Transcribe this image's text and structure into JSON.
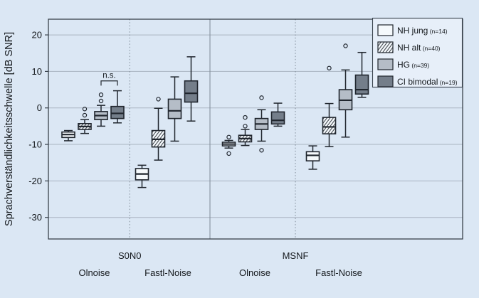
{
  "figure": {
    "background": "#dbe7f4",
    "frame_color": "#39424c",
    "grid_color": "#a9b4c1",
    "divider_color": "#7e8a96",
    "box_stroke": "#20262e",
    "ylabel": "Sprachverständlichkeitsschwelle [dB SNR]"
  },
  "legend": {
    "position": "top-right",
    "items": [
      {
        "label": "NH jung",
        "n_label": "(n=14)",
        "swatch": "#f5f9fc"
      },
      {
        "label": "NH alt",
        "n_label": "(n=40)",
        "swatch": "hatch"
      },
      {
        "label": "HG",
        "n_label": "(n=39)",
        "swatch": "#b5bdc7"
      },
      {
        "label": "CI bimodal",
        "n_label": "(n=19)",
        "swatch": "#747e8a"
      }
    ]
  },
  "chart_data": {
    "type": "boxplot",
    "title": "",
    "xlabel": "",
    "ylabel": "Sprachverständlichkeitsschwelle [dB SNR]",
    "ylim": [
      -35.9,
      24.3
    ],
    "yticks": [
      20,
      10,
      0,
      -10,
      -20,
      -30
    ],
    "grid": true,
    "group_labels": [
      "S0N0",
      "MSNF"
    ],
    "series": [
      {
        "name": "NH jung",
        "n_label": "(n=14)",
        "fill": "#f5f9fc"
      },
      {
        "name": "NH alt",
        "n_label": "(n=40)",
        "fill": "hatch"
      },
      {
        "name": "HG",
        "n_label": "(n=39)",
        "fill": "#b5bdc7"
      },
      {
        "name": "CI bimodal",
        "n_label": "(n=19)",
        "fill": "#747e8a"
      }
    ],
    "clusters": [
      {
        "group": "S0N0",
        "condition": "Olnoise",
        "boxes": [
          {
            "series": "NH jung",
            "whislo": -9.0,
            "q1": -8.1,
            "med": -7.3,
            "q3": -6.6,
            "whishi": -6.2,
            "outliers": []
          },
          {
            "series": "NH alt",
            "whislo": -7.0,
            "q1": -5.9,
            "med": -5.1,
            "q3": -4.3,
            "whishi": -3.2,
            "outliers": [
              -2.0,
              -0.3
            ]
          },
          {
            "series": "HG",
            "whislo": -5.0,
            "q1": -3.2,
            "med": -2.1,
            "q3": -1.0,
            "whishi": 0.7,
            "outliers": [
              1.9,
              3.6
            ]
          },
          {
            "series": "CI bimodal",
            "whislo": -4.1,
            "q1": -2.9,
            "med": -1.5,
            "q3": 0.4,
            "whishi": 4.7,
            "outliers": []
          }
        ]
      },
      {
        "group": "S0N0",
        "condition": "Fastl-Noise",
        "boxes": [
          {
            "series": "NH jung",
            "whislo": -21.8,
            "q1": -19.7,
            "med": -18.1,
            "q3": -16.6,
            "whishi": -15.7,
            "outliers": []
          },
          {
            "series": "NH alt",
            "whislo": -14.3,
            "q1": -10.7,
            "med": -8.6,
            "q3": -6.2,
            "whishi": -0.1,
            "outliers": [
              2.4
            ]
          },
          {
            "series": "HG",
            "whislo": -9.1,
            "q1": -2.9,
            "med": -0.8,
            "q3": 2.4,
            "whishi": 8.5,
            "outliers": []
          },
          {
            "series": "CI bimodal",
            "whislo": -3.6,
            "q1": 1.6,
            "med": 4.0,
            "q3": 7.4,
            "whishi": 14.0,
            "outliers": []
          }
        ]
      },
      {
        "group": "MSNF",
        "condition": "Olnoise",
        "boxes": [
          {
            "series": "NH jung",
            "whislo": -11.0,
            "q1": -10.4,
            "med": -9.9,
            "q3": -9.4,
            "whishi": -8.9,
            "outliers": [
              -12.5,
              -8.0
            ]
          },
          {
            "series": "NH alt",
            "whislo": -10.3,
            "q1": -9.3,
            "med": -8.4,
            "q3": -7.5,
            "whishi": -5.9,
            "outliers": [
              -5.0,
              -2.6
            ]
          },
          {
            "series": "HG",
            "whislo": -9.1,
            "q1": -5.9,
            "med": -4.4,
            "q3": -2.9,
            "whishi": -0.5,
            "outliers": [
              -11.6,
              2.8
            ]
          },
          {
            "series": "CI bimodal",
            "whislo": -5.0,
            "q1": -4.4,
            "med": -3.4,
            "q3": -1.1,
            "whishi": 1.3,
            "outliers": []
          }
        ]
      },
      {
        "group": "MSNF",
        "condition": "Fastl-Noise",
        "boxes": [
          {
            "series": "NH jung",
            "whislo": -16.8,
            "q1": -14.5,
            "med": -13.0,
            "q3": -12.0,
            "whishi": -10.4,
            "outliers": []
          },
          {
            "series": "NH alt",
            "whislo": -10.6,
            "q1": -7.1,
            "med": -5.2,
            "q3": -2.6,
            "whishi": 1.2,
            "outliers": [
              10.9
            ]
          },
          {
            "series": "HG",
            "whislo": -8.0,
            "q1": -0.5,
            "med": 2.1,
            "q3": 5.0,
            "whishi": 10.4,
            "outliers": [
              17.0
            ]
          },
          {
            "series": "CI bimodal",
            "whislo": 2.9,
            "q1": 3.8,
            "med": 5.0,
            "q3": 9.0,
            "whishi": 15.2,
            "outliers": []
          }
        ]
      }
    ],
    "annotation": {
      "text": "n.s.",
      "cluster": 0,
      "box_a": 2,
      "box_b": 3,
      "bar_y": 7.4,
      "leg_drop": 1.3
    }
  }
}
